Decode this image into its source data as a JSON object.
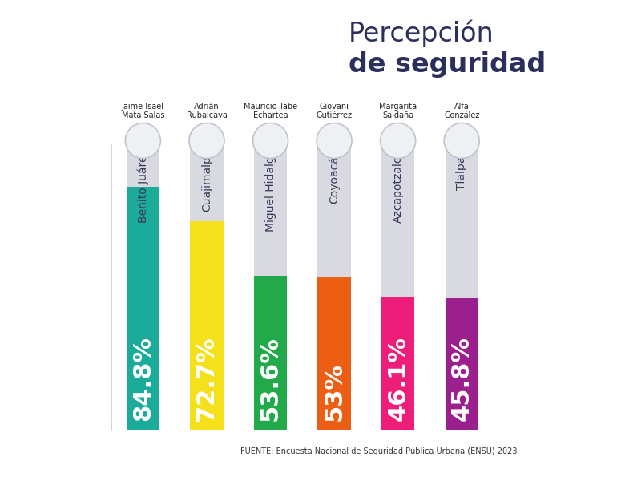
{
  "chart_data": {
    "type": "bar",
    "title": "Percepción\nde seguridad",
    "categories": [
      "Benito Juárez",
      "Cuajimalpa",
      "Miguel Hidalgo",
      "Coyoacán",
      "Azcapotzalco",
      "Tlalpan"
    ],
    "candidates": [
      "Jaime Isael\nMata Salas",
      "Adrián\nRubalcava",
      "Mauricio Tabe\nEchartea",
      "Giovani\nGutiérrez",
      "Margarita\nSaldaña",
      "Alfa\nGonzález"
    ],
    "values": [
      84.8,
      72.7,
      53.6,
      53,
      46.1,
      45.8
    ],
    "value_labels": [
      "84.8%",
      "72.7%",
      "53.6%",
      "53%",
      "46.1%",
      "45.8%"
    ],
    "colors": [
      "#1aab9b",
      "#f5e11b",
      "#22a94a",
      "#ec5e14",
      "#ec1e7a",
      "#9b1f8c"
    ],
    "ylim": [
      0,
      100
    ],
    "data_labels": true,
    "tick_labels": false,
    "source": "FUENTE: Encuesta Nacional de Seguridad Pública Urbana (ENSU) 2023"
  }
}
